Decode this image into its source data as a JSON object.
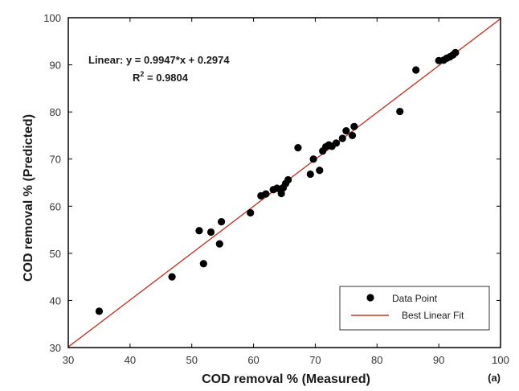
{
  "chart_data": {
    "type": "scatter",
    "xlabel": "COD removal % (Measured)",
    "ylabel": "COD removal % (Predicted)",
    "xlim": [
      30,
      100
    ],
    "ylim": [
      30,
      100
    ],
    "xticks": [
      30,
      40,
      50,
      60,
      70,
      80,
      90,
      100
    ],
    "yticks": [
      30,
      40,
      50,
      60,
      70,
      80,
      90,
      100
    ],
    "grid": false,
    "legend_position": "bottom-right",
    "annotation_line1": "Linear:  y = 0.9947*x + 0.2974",
    "annotation_r2_base": "R",
    "annotation_r2_sup": "2",
    "annotation_r2_rest": " = 0.9804",
    "panel_label": "(a)",
    "colors": {
      "points": "#000000",
      "fit": "#c0392b",
      "frame": "#000000"
    },
    "series": [
      {
        "name": "Data Point",
        "kind": "points",
        "points": [
          [
            35,
            37.7
          ],
          [
            46.8,
            45.0
          ],
          [
            51.2,
            54.8
          ],
          [
            51.9,
            47.8
          ],
          [
            53.1,
            54.5
          ],
          [
            54.5,
            52.0
          ],
          [
            54.8,
            56.7
          ],
          [
            59.5,
            58.6
          ],
          [
            61.2,
            62.2
          ],
          [
            62.0,
            62.6
          ],
          [
            63.2,
            63.5
          ],
          [
            63.8,
            63.8
          ],
          [
            64.5,
            62.7
          ],
          [
            64.8,
            63.9
          ],
          [
            65.2,
            64.8
          ],
          [
            65.6,
            65.6
          ],
          [
            67.2,
            72.4
          ],
          [
            69.2,
            66.8
          ],
          [
            69.7,
            70.0
          ],
          [
            70.7,
            67.6
          ],
          [
            71.2,
            71.7
          ],
          [
            71.7,
            72.6
          ],
          [
            72.2,
            73.0
          ],
          [
            72.7,
            72.7
          ],
          [
            73.4,
            73.4
          ],
          [
            74.4,
            74.4
          ],
          [
            75.0,
            76.0
          ],
          [
            76.0,
            75.0
          ],
          [
            76.3,
            76.9
          ],
          [
            83.7,
            80.1
          ],
          [
            86.3,
            88.9
          ],
          [
            90.0,
            90.9
          ],
          [
            90.8,
            91.0
          ],
          [
            91.3,
            91.4
          ],
          [
            91.8,
            91.7
          ],
          [
            92.3,
            92.1
          ],
          [
            92.7,
            92.6
          ]
        ]
      },
      {
        "name": "Best Linear Fit",
        "kind": "line",
        "slope": 0.9947,
        "intercept": 0.2974
      }
    ]
  }
}
